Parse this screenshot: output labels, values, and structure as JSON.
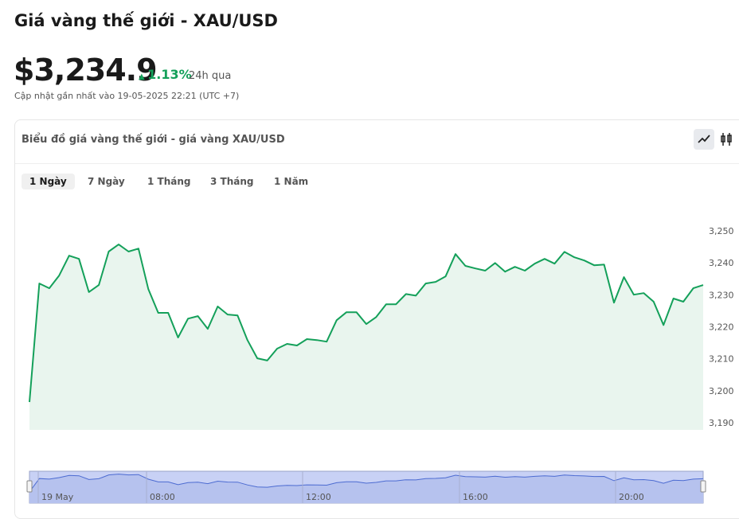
{
  "header": {
    "title": "Giá vàng thế giới - XAU/USD",
    "price": "$3,234.9",
    "change": "1.13%",
    "period": "24h qua",
    "updated": "Cập nhật gần nhất vào 19-05-2025 22:21 (UTC +7)"
  },
  "card": {
    "title": "Biểu đồ giá vàng thế giới - giá vàng XAU/USD",
    "tabs": [
      "1 Ngày",
      "7 Ngày",
      "1 Tháng",
      "3 Tháng",
      "1 Năm"
    ]
  },
  "chart_data": {
    "type": "area",
    "color": "#14a05a",
    "fill": "#e9f5ee",
    "values": [
      3196.7,
      3233.8,
      3232.3,
      3236.3,
      3242.5,
      3241.5,
      3231.1,
      3233.3,
      3243.8,
      3246.0,
      3243.8,
      3244.7,
      3232.0,
      3224.6,
      3224.6,
      3216.9,
      3222.8,
      3223.6,
      3219.6,
      3226.6,
      3224.1,
      3223.8,
      3216.1,
      3210.4,
      3209.7,
      3213.4,
      3214.9,
      3214.4,
      3216.4,
      3216.1,
      3215.6,
      3222.3,
      3224.8,
      3224.8,
      3221.1,
      3223.3,
      3227.3,
      3227.3,
      3230.5,
      3230.0,
      3233.8,
      3234.3,
      3236.0,
      3243.0,
      3239.3,
      3238.5,
      3237.8,
      3240.2,
      3237.5,
      3239.0,
      3237.8,
      3240.0,
      3241.5,
      3240.0,
      3243.7,
      3242.0,
      3241.0,
      3239.5,
      3239.7,
      3227.8,
      3235.8,
      3230.3,
      3230.8,
      3228.1,
      3220.8,
      3229.1,
      3228.1,
      3232.3,
      3233.3
    ],
    "ylim": [
      3188,
      3254
    ],
    "yticks": [
      {
        "value": 3190,
        "label": "3,190"
      },
      {
        "value": 3200,
        "label": "3,200"
      },
      {
        "value": 3210,
        "label": "3,210"
      },
      {
        "value": 3220,
        "label": "3,220"
      },
      {
        "value": 3230,
        "label": "3,230"
      },
      {
        "value": 3240,
        "label": "3,240"
      },
      {
        "value": 3250,
        "label": "3,250"
      }
    ],
    "grid": false,
    "navigator": {
      "labels": [
        "19 May",
        "08:00",
        "12:00",
        "16:00",
        "20:00"
      ]
    }
  }
}
